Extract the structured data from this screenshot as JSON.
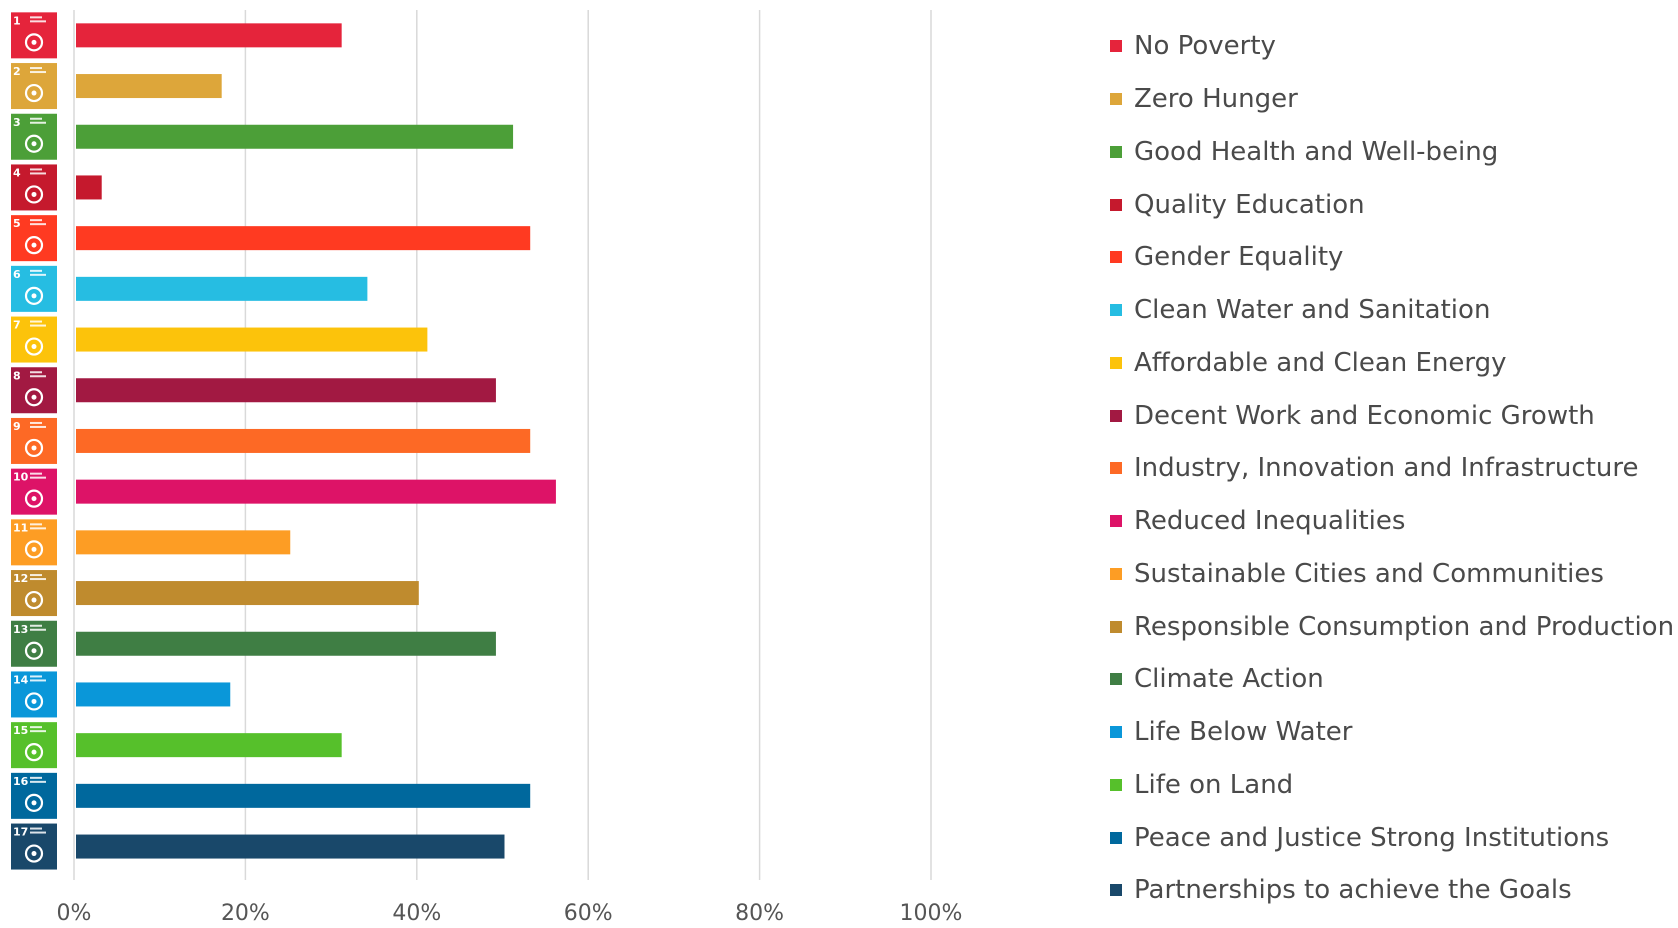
{
  "chart_data": {
    "type": "bar",
    "orientation": "horizontal",
    "categories": [
      "No Poverty",
      "Zero Hunger",
      "Good Health and Well-being",
      "Quality Education",
      "Gender Equality",
      "Clean Water and Sanitation",
      "Affordable and Clean Energy",
      "Decent Work and Economic Growth",
      "Industry, Innovation and Infrastructure",
      "Reduced Inequalities",
      "Sustainable Cities and Communities",
      "Responsible Consumption and Production",
      "Climate Action",
      "Life Below Water",
      "Life on Land",
      "Peace and Justice Strong Institutions",
      "Partnerships to achieve the Goals"
    ],
    "values": [
      31,
      17,
      51,
      3,
      53,
      34,
      41,
      49,
      53,
      56,
      25,
      40,
      49,
      18,
      31,
      53,
      50
    ],
    "colors": [
      "#e5243b",
      "#dda63a",
      "#4c9f38",
      "#c5192d",
      "#ff3a21",
      "#26bde2",
      "#fcc30b",
      "#a21942",
      "#fd6925",
      "#dd1367",
      "#fd9d24",
      "#bf8b2e",
      "#3f7e44",
      "#0a97d9",
      "#56c02b",
      "#00689d",
      "#19486a"
    ],
    "sdg_numbers": [
      "1",
      "2",
      "3",
      "4",
      "5",
      "6",
      "7",
      "8",
      "9",
      "10",
      "11",
      "12",
      "13",
      "14",
      "15",
      "16",
      "17"
    ],
    "xlim": [
      0,
      100
    ],
    "x_ticks": [
      0,
      20,
      40,
      60,
      80,
      100
    ],
    "x_tick_labels": [
      "0%",
      "20%",
      "40%",
      "60%",
      "80%",
      "100%"
    ],
    "grid": true,
    "legend_position": "right",
    "title": "",
    "xlabel": "",
    "ylabel": ""
  }
}
